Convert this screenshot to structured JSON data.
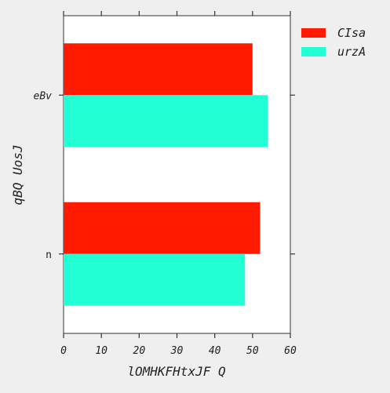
{
  "chart_data": {
    "type": "bar",
    "orientation": "horizontal",
    "title": "",
    "xlabel": "lOMHKFHtxJF Q",
    "ylabel": "qBQ UosJ",
    "categories": [
      "n",
      "eBv"
    ],
    "series": [
      {
        "name": "CIsa",
        "values": [
          52,
          50
        ],
        "color": "#ff1a00"
      },
      {
        "name": "urzA",
        "values": [
          48,
          54
        ],
        "color": "#22ffd5"
      }
    ],
    "xlim": [
      0,
      60
    ],
    "xticks": [
      "0",
      "10",
      "20",
      "30",
      "40",
      "50",
      "60"
    ],
    "grid": false,
    "legend_position": "outside-right",
    "background": "#efefef",
    "plot_background": "#ffffff"
  }
}
